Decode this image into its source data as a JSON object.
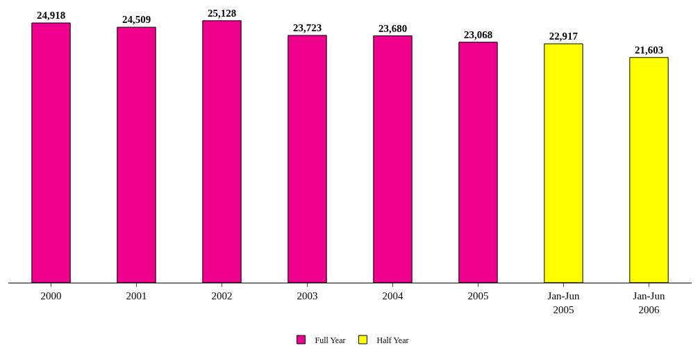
{
  "chart_data": {
    "type": "bar",
    "categories": [
      "2000",
      "2001",
      "2002",
      "2003",
      "2004",
      "2005",
      "Jan-Jun\n2005",
      "Jan-Jun\n2006"
    ],
    "series": [
      {
        "name": "Full Year",
        "color": "#ec008c",
        "values": [
          24918,
          24509,
          25128,
          23723,
          23680,
          23068,
          null,
          null
        ],
        "value_labels": [
          "24,918",
          "24,509",
          "25,128",
          "23,723",
          "23,680",
          "23,068",
          null,
          null
        ]
      },
      {
        "name": "Half Year",
        "color": "#ffff00",
        "values": [
          null,
          null,
          null,
          null,
          null,
          null,
          22917,
          21603
        ],
        "value_labels": [
          null,
          null,
          null,
          null,
          null,
          null,
          "22,917",
          "21,603"
        ]
      }
    ],
    "tick_labels": "x",
    "legend": "bottom"
  }
}
